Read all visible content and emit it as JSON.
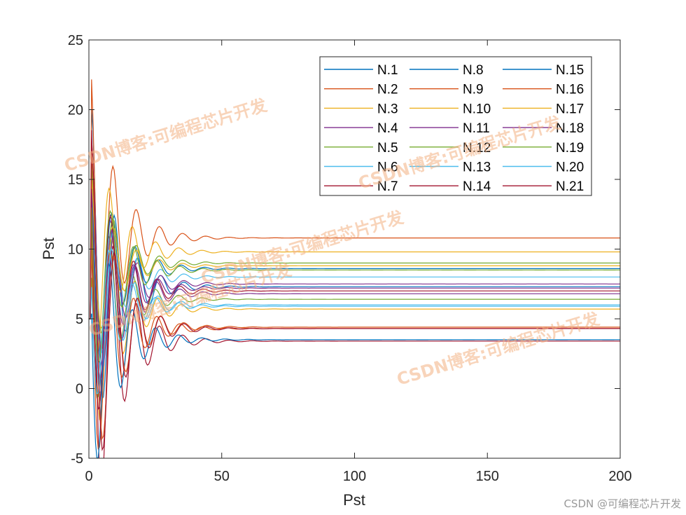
{
  "chart_data": {
    "type": "line",
    "xlabel": "Pst",
    "ylabel": "Pst",
    "xlim": [
      0,
      200
    ],
    "ylim": [
      -5,
      25
    ],
    "xticks": [
      0,
      50,
      100,
      150,
      200
    ],
    "yticks": [
      -5,
      0,
      5,
      10,
      15,
      20,
      25
    ],
    "x_ticklabels": [
      "0",
      "50",
      "100",
      "150",
      "200"
    ],
    "y_ticklabels": [
      "-5",
      "0",
      "5",
      "10",
      "15",
      "20",
      "25"
    ],
    "grid": false,
    "box": true,
    "legend_position": "top-right",
    "legend_columns": 3,
    "series": [
      {
        "name": "N.1",
        "color": "#0072BD",
        "start": 5,
        "steady": 7.3,
        "peak": 20.0
      },
      {
        "name": "N.2",
        "color": "#D95319",
        "start": 5,
        "steady": 10.8,
        "peak": 22.9
      },
      {
        "name": "N.3",
        "color": "#EDB120",
        "start": 5,
        "steady": 5.7,
        "peak": 17.0
      },
      {
        "name": "N.4",
        "color": "#7E2F8E",
        "start": 5,
        "steady": 6.8,
        "peak": 18.0
      },
      {
        "name": "N.5",
        "color": "#77AC30",
        "start": 5,
        "steady": 6.4,
        "peak": 15.5
      },
      {
        "name": "N.6",
        "color": "#4DBEEE",
        "start": 5,
        "steady": 8.0,
        "peak": 16.5
      },
      {
        "name": "N.7",
        "color": "#A2142F",
        "start": 5,
        "steady": 3.4,
        "peak": 19.5
      },
      {
        "name": "N.8",
        "color": "#0072BD",
        "start": 5,
        "steady": 8.6,
        "peak": 17.5
      },
      {
        "name": "N.9",
        "color": "#D95319",
        "start": 5,
        "steady": 4.3,
        "peak": 16.0
      },
      {
        "name": "N.10",
        "color": "#EDB120",
        "start": 5,
        "steady": 9.8,
        "peak": 19.0
      },
      {
        "name": "N.11",
        "color": "#7E2F8E",
        "start": 5,
        "steady": 7.5,
        "peak": 17.0
      },
      {
        "name": "N.12",
        "color": "#77AC30",
        "start": 5,
        "steady": 9.0,
        "peak": 16.5
      },
      {
        "name": "N.13",
        "color": "#4DBEEE",
        "start": 5,
        "steady": 6.0,
        "peak": 15.0
      },
      {
        "name": "N.14",
        "color": "#A2142F",
        "start": 5,
        "steady": 7.0,
        "peak": 18.5
      },
      {
        "name": "N.15",
        "color": "#0072BD",
        "start": 5,
        "steady": 3.5,
        "peak": 14.5
      },
      {
        "name": "N.16",
        "color": "#D95319",
        "start": 5,
        "steady": 4.4,
        "peak": 17.0
      },
      {
        "name": "N.17",
        "color": "#EDB120",
        "start": 5,
        "steady": 8.8,
        "peak": 15.5
      },
      {
        "name": "N.18",
        "color": "#7E2F8E",
        "start": 5,
        "steady": 7.2,
        "peak": 16.5
      },
      {
        "name": "N.19",
        "color": "#77AC30",
        "start": 5,
        "steady": 8.5,
        "peak": 17.5
      },
      {
        "name": "N.20",
        "color": "#4DBEEE",
        "start": 5,
        "steady": 5.9,
        "peak": 14.0
      },
      {
        "name": "N.21",
        "color": "#A2142F",
        "start": 5,
        "steady": 4.3,
        "peak": 18.0
      }
    ]
  },
  "watermarks": [
    "CSDN博客:可编程芯片开发",
    "CSDN博客:可编程芯片开发",
    "CSDN博客:可编程芯片开发",
    "CSDN博客:可编程芯片开发",
    "CSDN博客:可编程芯片开发"
  ],
  "credit": "CSDN @可编程芯片开发"
}
